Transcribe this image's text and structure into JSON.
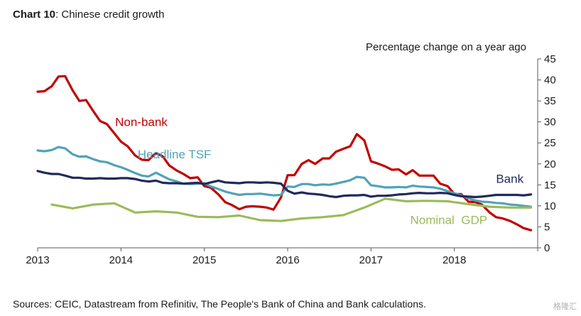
{
  "title": {
    "bold": "Chart 10",
    "rest": ": Chinese credit growth"
  },
  "source": "Sources:  CEIC, Datastream from Refinitiv, The People's Bank of China and Bank calculations.",
  "watermark": "格隆汇",
  "chart_data": {
    "type": "line",
    "title": "Chinese credit growth",
    "ylabel": "Percentage change on a year ago",
    "xlabel": "",
    "ylim": [
      0,
      45
    ],
    "yticks": [
      0,
      5,
      10,
      15,
      20,
      25,
      30,
      35,
      40,
      45
    ],
    "xlim": [
      2013,
      2019
    ],
    "xticks": [
      2013,
      2014,
      2015,
      2016,
      2017,
      2018
    ],
    "grid": false,
    "series": [
      {
        "name": "Non-bank",
        "color": "#c00000",
        "x": [
          2013.0,
          2013.08,
          2013.17,
          2013.25,
          2013.33,
          2013.42,
          2013.5,
          2013.58,
          2013.67,
          2013.75,
          2013.83,
          2013.92,
          2014.0,
          2014.08,
          2014.17,
          2014.25,
          2014.33,
          2014.42,
          2014.5,
          2014.58,
          2014.67,
          2014.75,
          2014.83,
          2014.92,
          2015.0,
          2015.08,
          2015.17,
          2015.25,
          2015.33,
          2015.42,
          2015.5,
          2015.58,
          2015.67,
          2015.75,
          2015.83,
          2015.92,
          2016.0,
          2016.08,
          2016.17,
          2016.25,
          2016.33,
          2016.42,
          2016.5,
          2016.58,
          2016.67,
          2016.75,
          2016.83,
          2016.92,
          2017.0,
          2017.08,
          2017.17,
          2017.25,
          2017.33,
          2017.42,
          2017.5,
          2017.58,
          2017.67,
          2017.75,
          2017.83,
          2017.92,
          2018.0,
          2018.08,
          2018.17,
          2018.25,
          2018.33,
          2018.42,
          2018.5,
          2018.58,
          2018.67,
          2018.75,
          2018.83,
          2018.92
        ],
        "values": [
          37.2,
          37.3,
          38.5,
          40.8,
          40.9,
          37.5,
          35,
          35.2,
          32.5,
          30.2,
          29.5,
          27.3,
          25.3,
          24.2,
          22,
          21.0,
          20.9,
          22.6,
          21.8,
          19.6,
          18.4,
          17.6,
          16.6,
          16.8,
          14.7,
          14.3,
          12.7,
          10.9,
          10.2,
          9.2,
          9.8,
          9.9,
          9.8,
          9.6,
          9.1,
          12,
          17.3,
          17.3,
          20,
          20.9,
          20,
          21.3,
          21.3,
          22.9,
          23.6,
          24.2,
          27.1,
          25.6,
          20.6,
          20.1,
          19.4,
          18.6,
          18.7,
          17.5,
          18.5,
          17.2,
          17.2,
          17.2,
          15.3,
          14.7,
          12.8,
          12.8,
          11,
          10.9,
          10.3,
          8.5,
          7.3,
          7.0,
          6.4,
          5.6,
          4.7,
          4.2
        ]
      },
      {
        "name": "Headline TSF",
        "color": "#4fa3b8",
        "x": [
          2013.0,
          2013.08,
          2013.17,
          2013.25,
          2013.33,
          2013.42,
          2013.5,
          2013.58,
          2013.67,
          2013.75,
          2013.83,
          2013.92,
          2014.0,
          2014.08,
          2014.17,
          2014.25,
          2014.33,
          2014.42,
          2014.5,
          2014.58,
          2014.67,
          2014.75,
          2014.83,
          2014.92,
          2015.0,
          2015.08,
          2015.17,
          2015.25,
          2015.33,
          2015.42,
          2015.5,
          2015.58,
          2015.67,
          2015.75,
          2015.83,
          2015.92,
          2016.0,
          2016.08,
          2016.17,
          2016.25,
          2016.33,
          2016.42,
          2016.5,
          2016.58,
          2016.67,
          2016.75,
          2016.83,
          2016.92,
          2017.0,
          2017.08,
          2017.17,
          2017.25,
          2017.33,
          2017.42,
          2017.5,
          2017.58,
          2017.67,
          2017.75,
          2017.83,
          2017.92,
          2018.0,
          2018.08,
          2018.17,
          2018.25,
          2018.33,
          2018.42,
          2018.5,
          2018.58,
          2018.67,
          2018.75,
          2018.83,
          2018.92
        ],
        "values": [
          23.2,
          23.0,
          23.3,
          24.0,
          23.7,
          22.3,
          21.7,
          21.8,
          21.1,
          20.6,
          20.4,
          19.7,
          19.2,
          18.6,
          17.8,
          17.2,
          17,
          17.9,
          17.1,
          16.3,
          15.8,
          15.3,
          15.2,
          15.3,
          15.4,
          14.6,
          14.0,
          13.4,
          13.0,
          12.6,
          12.8,
          12.8,
          12.9,
          12.7,
          12.5,
          12.6,
          14.6,
          14.5,
          15.2,
          15.2,
          14.9,
          15.1,
          15.0,
          15.3,
          15.7,
          16.1,
          16.9,
          16.7,
          14.9,
          14.7,
          14.4,
          14.4,
          14.5,
          14.4,
          14.8,
          14.6,
          14.5,
          14.4,
          14.1,
          13.5,
          13.0,
          12.5,
          11.8,
          11.3,
          11.0,
          10.9,
          10.7,
          10.6,
          10.3,
          10.2,
          10.0,
          9.8
        ]
      },
      {
        "name": "Bank",
        "color": "#1f2a5c",
        "x": [
          2013.0,
          2013.08,
          2013.17,
          2013.25,
          2013.33,
          2013.42,
          2013.5,
          2013.58,
          2013.67,
          2013.75,
          2013.83,
          2013.92,
          2014.0,
          2014.08,
          2014.17,
          2014.25,
          2014.33,
          2014.42,
          2014.5,
          2014.58,
          2014.67,
          2014.75,
          2014.83,
          2014.92,
          2015.0,
          2015.08,
          2015.17,
          2015.25,
          2015.33,
          2015.42,
          2015.5,
          2015.58,
          2015.67,
          2015.75,
          2015.83,
          2015.92,
          2016.0,
          2016.08,
          2016.17,
          2016.25,
          2016.33,
          2016.42,
          2016.5,
          2016.58,
          2016.67,
          2016.75,
          2016.83,
          2016.92,
          2017.0,
          2017.08,
          2017.17,
          2017.25,
          2017.33,
          2017.42,
          2017.5,
          2017.58,
          2017.67,
          2017.75,
          2017.83,
          2017.92,
          2018.0,
          2018.08,
          2018.17,
          2018.25,
          2018.33,
          2018.42,
          2018.5,
          2018.58,
          2018.67,
          2018.75,
          2018.83,
          2018.92
        ],
        "values": [
          18.3,
          17.9,
          17.6,
          17.6,
          17.2,
          16.7,
          16.7,
          16.5,
          16.5,
          16.6,
          16.5,
          16.5,
          16.6,
          16.6,
          16.4,
          16.0,
          15.8,
          16.0,
          15.5,
          15.4,
          15.4,
          15.3,
          15.4,
          15.5,
          15.2,
          15.6,
          16.0,
          15.6,
          15.5,
          15.4,
          15.6,
          15.6,
          15.5,
          15.6,
          15.5,
          15.3,
          13.6,
          12.9,
          13.2,
          12.9,
          12.8,
          12.6,
          12.3,
          12.1,
          12.4,
          12.5,
          12.5,
          12.6,
          12.2,
          12.4,
          12.4,
          12.5,
          12.7,
          12.8,
          13.0,
          13.1,
          13.0,
          13.0,
          13.1,
          13.0,
          12.6,
          12.3,
          12.2,
          12.1,
          12.2,
          12.4,
          12.6,
          12.6,
          12.6,
          12.6,
          12.5,
          12.7
        ]
      },
      {
        "name": "Nominal  GDP",
        "color": "#9bbb59",
        "x": [
          2013.17,
          2013.42,
          2013.67,
          2013.92,
          2014.17,
          2014.42,
          2014.67,
          2014.92,
          2015.17,
          2015.42,
          2015.67,
          2015.92,
          2016.17,
          2016.42,
          2016.67,
          2016.92,
          2017.17,
          2017.42,
          2017.67,
          2017.92,
          2018.17,
          2018.42,
          2018.67,
          2018.92
        ],
        "values": [
          10.3,
          9.4,
          10.3,
          10.6,
          8.4,
          8.7,
          8.4,
          7.4,
          7.3,
          7.7,
          6.6,
          6.4,
          7.0,
          7.3,
          7.8,
          9.6,
          11.7,
          11.1,
          11.2,
          11.1,
          10.4,
          9.8,
          9.6,
          9.6
        ]
      }
    ],
    "annotations": [
      {
        "text": "Non-bank",
        "color": "#c00000",
        "x": 2013.93,
        "y": 29
      },
      {
        "text": "Headline TSF",
        "color": "#4fa3b8",
        "x": 2014.2,
        "y": 21.3
      },
      {
        "text": "Bank",
        "color": "#1f2a5c",
        "x": 2018.5,
        "y": 15.5
      },
      {
        "text": "Nominal  GDP",
        "color": "#9bbb59",
        "x": 2017.47,
        "y": 5.7
      }
    ]
  }
}
